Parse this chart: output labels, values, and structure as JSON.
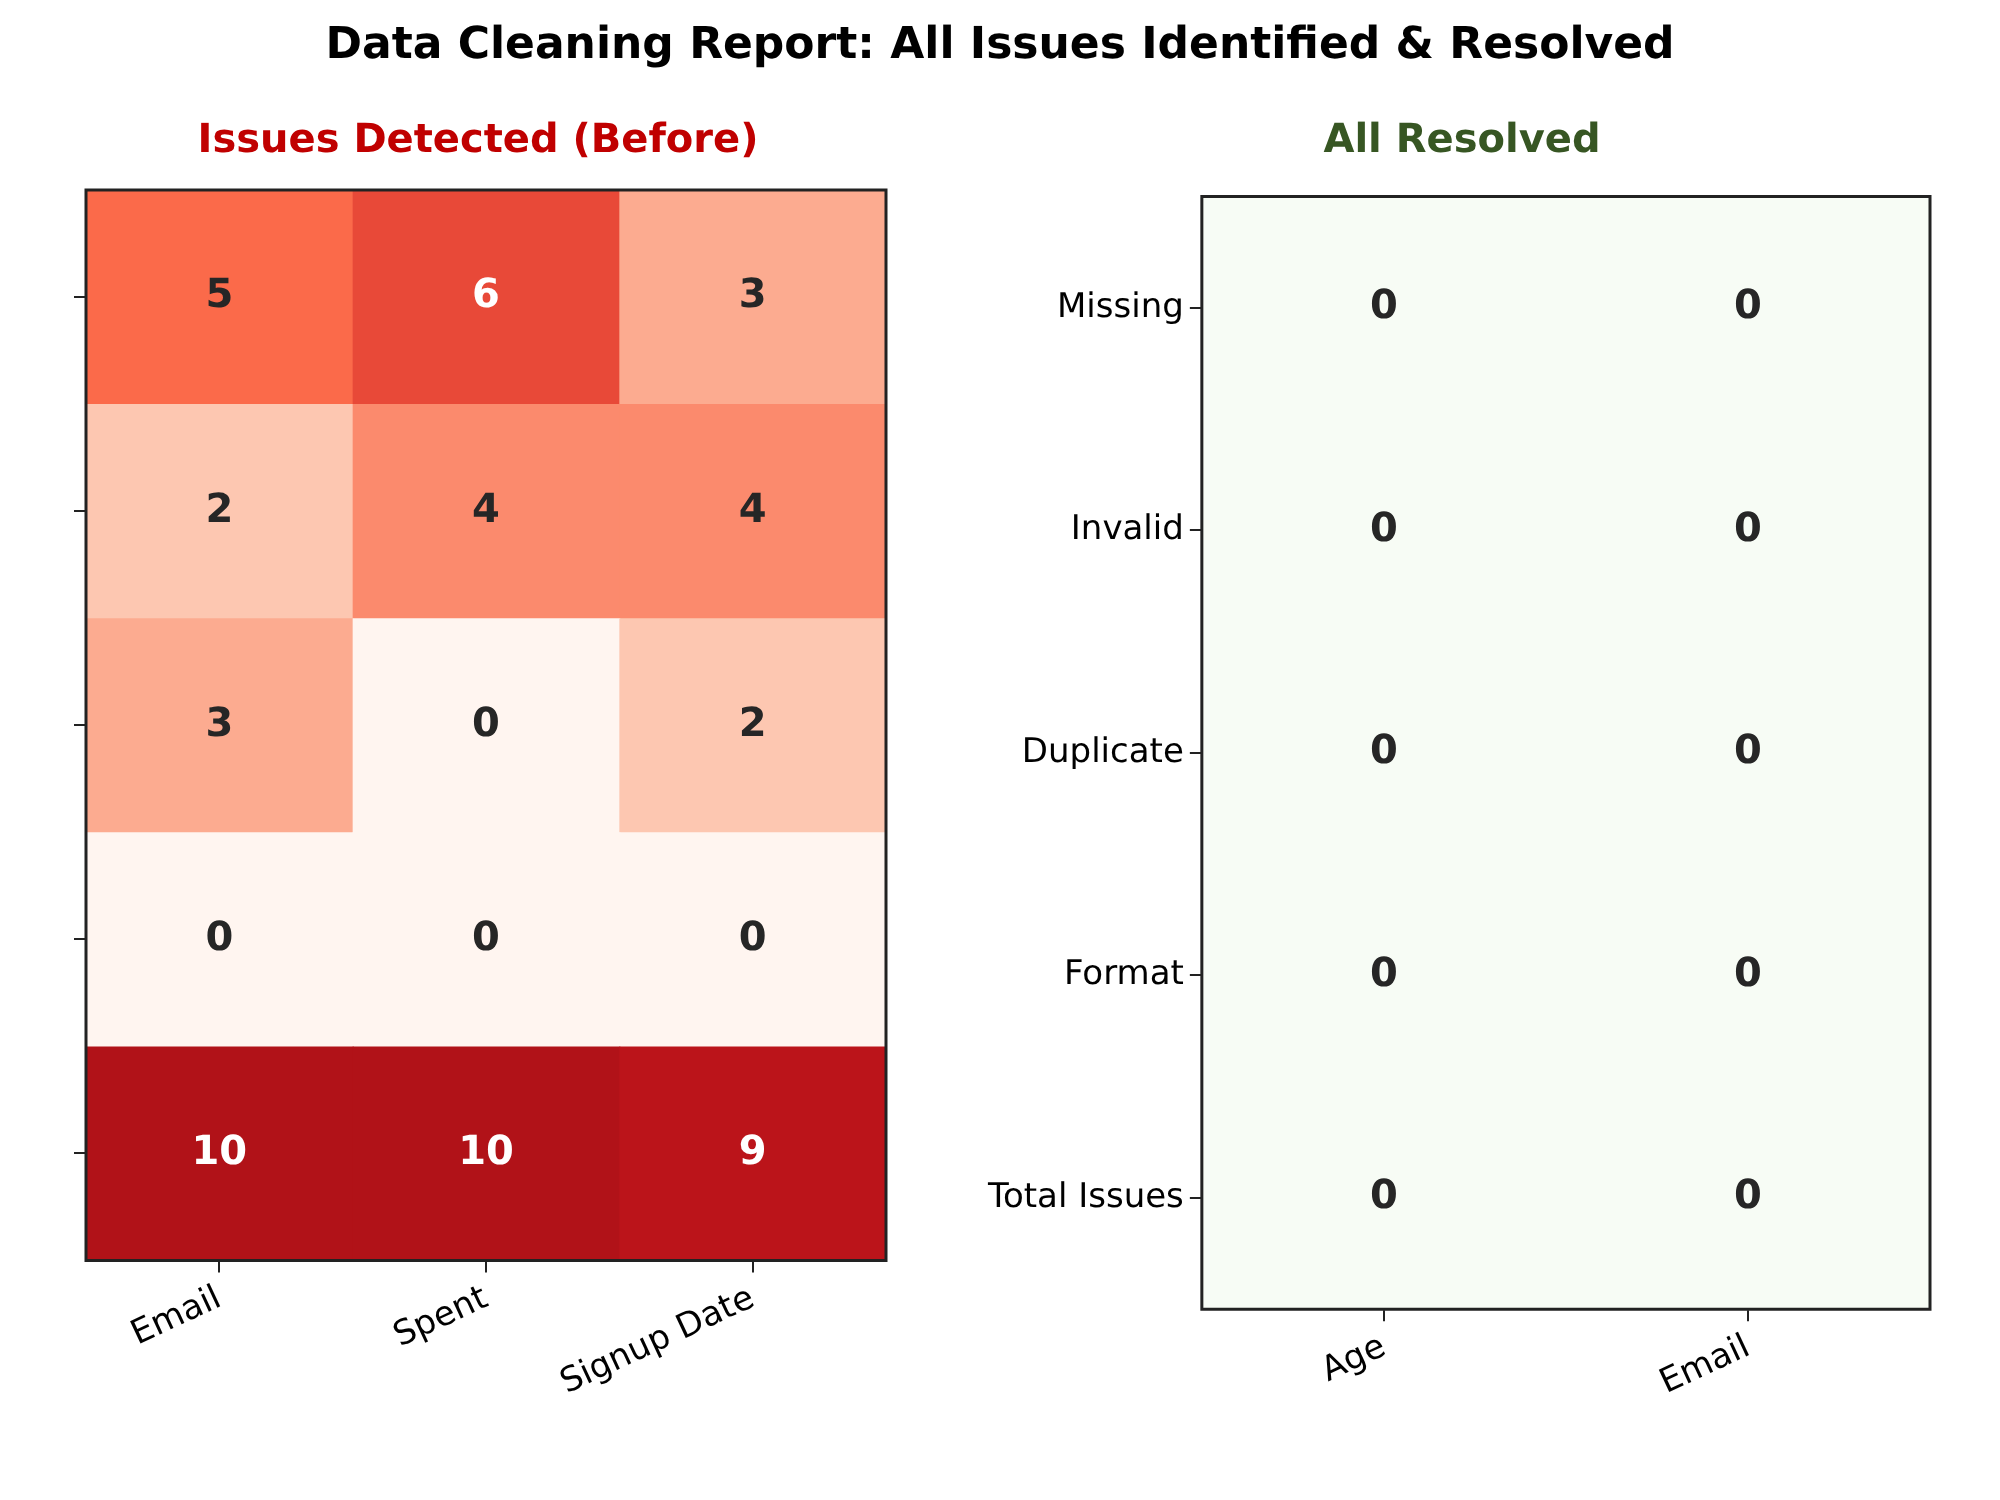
{
  "chart_data": [
    {
      "type": "heatmap",
      "title": "Data Cleaning Report: All Issues Identified & Resolved",
      "subtitle": "Issues Detected (Before)",
      "categories": [
        "Email",
        "Spent",
        "Signup Date"
      ],
      "y_categories": [
        null,
        null,
        null,
        null,
        null
      ],
      "cells": [
        [
          5,
          6,
          3
        ],
        [
          2,
          4,
          4
        ],
        [
          3,
          0,
          2
        ],
        [
          0,
          0,
          0
        ],
        [
          10,
          10,
          9
        ]
      ],
      "colors": [
        "#fff5f0",
        "#fcbba1",
        "#fb6a4a",
        "#cb181d",
        "#b11218"
      ],
      "data_labels": true,
      "tick_labels": "x"
    },
    {
      "type": "heatmap",
      "subtitle": "All Resolved",
      "categories": [
        "Age",
        "Email"
      ],
      "y_categories": [
        "Missing",
        "Invalid",
        "Duplicate",
        "Format",
        "Total Issues"
      ],
      "cells": [
        [
          0,
          0
        ],
        [
          0,
          0
        ],
        [
          0,
          0
        ],
        [
          0,
          0
        ],
        [
          0,
          0
        ]
      ],
      "colors": [
        "#f7fcf5"
      ],
      "data_labels": true
    }
  ]
}
